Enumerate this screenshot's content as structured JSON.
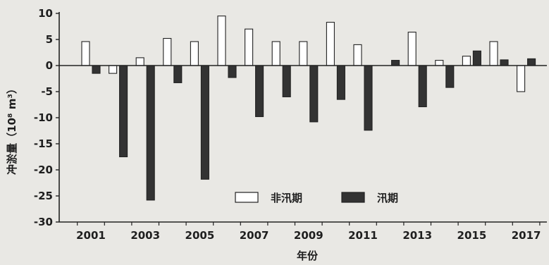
{
  "chart_data": {
    "type": "bar",
    "ylabel": "冲淤量（10⁸ m³）",
    "xlabel": "年份",
    "ylim": [
      -30,
      10
    ],
    "yticks": [
      10,
      5,
      0,
      -5,
      -10,
      -15,
      -20,
      -25,
      -30
    ],
    "x": [
      2001,
      2002,
      2003,
      2004,
      2005,
      2006,
      2007,
      2008,
      2009,
      2010,
      2011,
      2012,
      2013,
      2014,
      2015,
      2016,
      2017
    ],
    "xtick_labels": [
      "2001",
      "2003",
      "2005",
      "2007",
      "2009",
      "2011",
      "2013",
      "2015",
      "2017"
    ],
    "legend_position": "lower-right",
    "grid": false,
    "series": [
      {
        "name": "非汛期",
        "fill": "#ffffff",
        "values": [
          4.6,
          -1.5,
          1.5,
          5.2,
          4.6,
          9.5,
          7.0,
          4.6,
          4.6,
          8.3,
          4.0,
          0.0,
          6.4,
          1.0,
          1.8,
          4.6,
          -5.0
        ]
      },
      {
        "name": "汛期",
        "fill": "#333333",
        "values": [
          -1.5,
          -17.5,
          -25.8,
          -3.3,
          -21.8,
          -2.3,
          -9.8,
          -6.0,
          -10.8,
          -6.5,
          -12.4,
          1.0,
          -7.9,
          -4.2,
          2.8,
          1.1,
          1.3
        ]
      }
    ]
  }
}
